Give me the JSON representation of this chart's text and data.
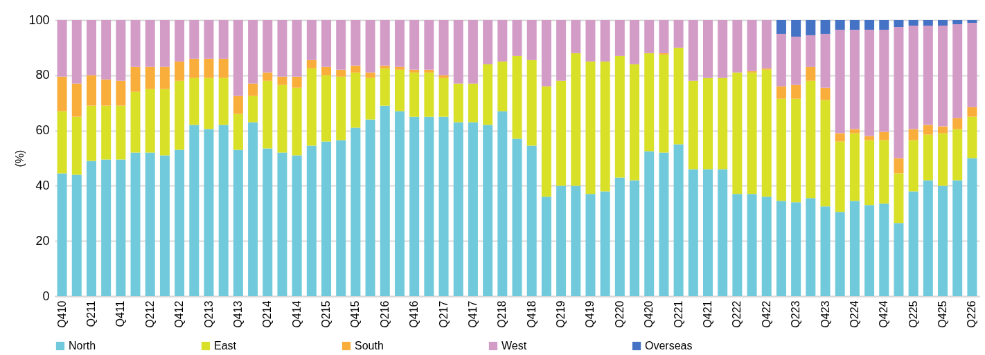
{
  "chart_data": {
    "type": "bar",
    "stacked": true,
    "ylabel": "(%)",
    "categories": [
      "Q410",
      null,
      "Q211",
      null,
      "Q411",
      null,
      "Q212",
      null,
      "Q412",
      null,
      "Q213",
      null,
      "Q413",
      null,
      "Q214",
      null,
      "Q414",
      null,
      "Q215",
      null,
      "Q415",
      null,
      "Q216",
      null,
      "Q416",
      null,
      "Q217",
      null,
      "Q417",
      null,
      "Q218",
      null,
      "Q418",
      null,
      "Q219",
      null,
      "Q419",
      null,
      "Q220",
      null,
      "Q420",
      null,
      "Q221",
      null,
      "Q421",
      null,
      "Q222",
      null,
      "Q422",
      null,
      "Q223",
      null,
      "Q423",
      null,
      "Q224",
      null,
      "Q424",
      null,
      "Q225",
      null,
      "Q425",
      null,
      "Q226"
    ],
    "series": [
      {
        "name": "North",
        "color": "#70cadb",
        "values": [
          44.5,
          44,
          49,
          49.5,
          49.5,
          52,
          52,
          51,
          53,
          62,
          60.5,
          62,
          53,
          63,
          53.5,
          52,
          51,
          54.5,
          56,
          56.5,
          61,
          64,
          69,
          67,
          65,
          65,
          65,
          63,
          63,
          62,
          67,
          57,
          54.5,
          36,
          40,
          40,
          37,
          38,
          43,
          42,
          52.5,
          52,
          55,
          46,
          46,
          46,
          37,
          37,
          36,
          34.5,
          34,
          35.5,
          32.5,
          30.5,
          34.5,
          33,
          33.5,
          26.5,
          38,
          42,
          40,
          42,
          50
        ]
      },
      {
        "name": "East",
        "color": "#d9e028",
        "values": [
          22.5,
          21,
          20,
          19.5,
          19.5,
          22,
          23,
          24,
          25,
          17,
          18.5,
          17,
          13,
          9.5,
          24.5,
          24.5,
          24.5,
          28,
          24,
          23,
          20,
          15,
          13.5,
          15,
          16,
          16,
          14,
          14,
          14,
          22,
          18,
          30,
          31,
          40,
          38,
          48,
          48,
          47,
          44,
          42,
          35.5,
          35.5,
          35,
          32,
          33,
          33,
          44,
          44,
          46,
          37,
          37.5,
          42.5,
          38.5,
          25.5,
          24.5,
          23.5,
          23,
          18,
          18.5,
          16.5,
          19,
          18.5,
          15
        ]
      },
      {
        "name": "South",
        "color": "#f9ae3b",
        "values": [
          12.5,
          12,
          11,
          9.5,
          9,
          9,
          8,
          8,
          7,
          7,
          7,
          7,
          6.5,
          4.5,
          3,
          3,
          4,
          3,
          3,
          2.5,
          2.5,
          2,
          1,
          1,
          1,
          1,
          1,
          null,
          null,
          null,
          null,
          null,
          null,
          null,
          null,
          null,
          null,
          null,
          null,
          null,
          null,
          0.5,
          null,
          null,
          null,
          null,
          null,
          0.5,
          0.5,
          4.5,
          5,
          5,
          4.5,
          3,
          1.5,
          1.5,
          3,
          5.5,
          4,
          3.5,
          2.5,
          4,
          3.5
        ]
      },
      {
        "name": "West",
        "color": "#d39cc7",
        "values": [
          20.5,
          23,
          20,
          21.5,
          22,
          17,
          17,
          17,
          15,
          14,
          14,
          14,
          27.5,
          23,
          19,
          20.5,
          20.5,
          14.5,
          17,
          18,
          16.5,
          19,
          16.5,
          17,
          18,
          18,
          20,
          23,
          23,
          16,
          15,
          13,
          14.5,
          24,
          22,
          12,
          15,
          15,
          13,
          16,
          12,
          12,
          10,
          22,
          21,
          21,
          19,
          18.5,
          17.5,
          19,
          17.5,
          11.5,
          19.5,
          37.5,
          36,
          38.5,
          37,
          47.5,
          37.5,
          36,
          36.5,
          34,
          30.5
        ]
      },
      {
        "name": "Overseas",
        "color": "#4472c4",
        "values": [
          null,
          null,
          null,
          null,
          null,
          null,
          null,
          null,
          null,
          null,
          null,
          null,
          null,
          null,
          null,
          null,
          null,
          null,
          null,
          null,
          null,
          null,
          null,
          null,
          null,
          null,
          null,
          null,
          null,
          null,
          null,
          null,
          null,
          null,
          null,
          null,
          null,
          null,
          null,
          null,
          null,
          null,
          null,
          null,
          null,
          null,
          null,
          null,
          null,
          5,
          6,
          5.5,
          5,
          3.5,
          3.5,
          3.5,
          3.5,
          2.5,
          2,
          2,
          2,
          1.5,
          1
        ]
      }
    ],
    "ylim": [
      0,
      100
    ],
    "yticks": [
      0,
      20,
      40,
      60,
      80,
      100
    ],
    "grid": "y",
    "legend": "bottom"
  }
}
